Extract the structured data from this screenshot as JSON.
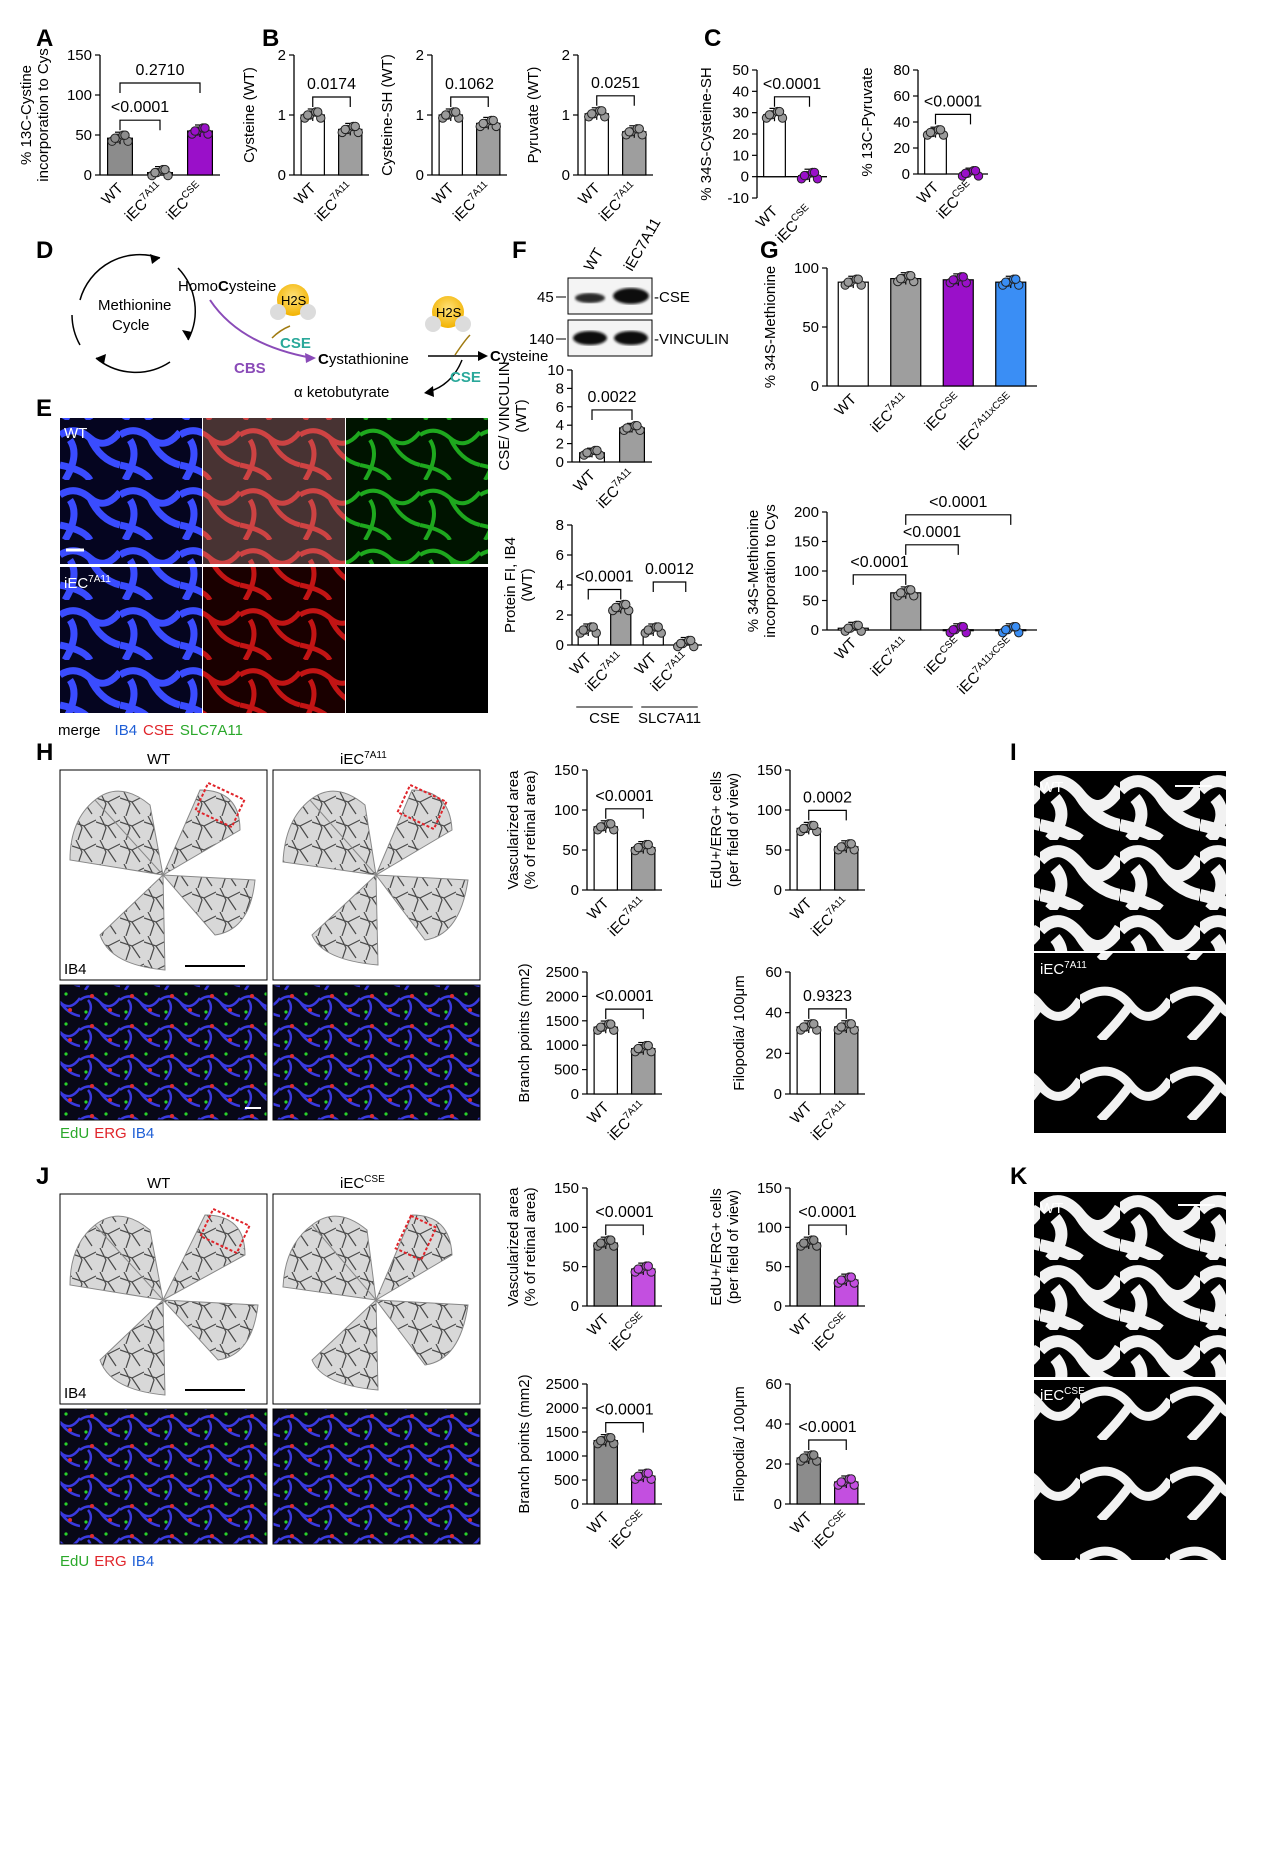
{
  "colors": {
    "wt": "#ffffff",
    "wt_grey": "#8c8c8c",
    "ec7a11": "#9e9e9e",
    "ecCSE": "#9a10c9",
    "ecCSE_light": "#c34fe0",
    "ec7a11xCSE": "#3a8ef5",
    "dark_dot": "#222222",
    "red_box": "#e0242a",
    "ib4": "#1f5fd6",
    "cse": "#e0242a",
    "slc": "#2aa82a",
    "cse_label": "#2aa89a",
    "cbs_label": "#8a4bb8"
  },
  "panels": {
    "A": "A",
    "B": "B",
    "C": "C",
    "D": "D",
    "E": "E",
    "F": "F",
    "G": "G",
    "H": "H",
    "I": "I",
    "J": "J",
    "K": "K"
  },
  "diagram_D": {
    "cycle": [
      "Methionine",
      "Cycle"
    ],
    "homocysteine_pre": "Homo",
    "homocysteine_bold": "C",
    "homocysteine_post": "ysteine",
    "h2s_1": "H2S",
    "h2s_2": "H2S",
    "cse_1": "CSE",
    "cse_2": "CSE",
    "cbs": "CBS",
    "cystathionine_bold": "C",
    "cystathionine_post": "ystathionine",
    "cysteine_bold": "C",
    "cysteine_post": "ysteine",
    "ketobutyrate": "α ketobutyrate"
  },
  "panel_E": {
    "wt": "WT",
    "mut_base": "iEC",
    "mut_sup": "7A11",
    "legend_merge": "merge",
    "legend_ib4": "IB4",
    "legend_cse": "CSE",
    "legend_slc": "SLC7A11"
  },
  "panel_F_blot": {
    "lanes": [
      "WT",
      "iEC7A11"
    ],
    "mw": [
      "45",
      "140"
    ],
    "bands": [
      "-CSE",
      "-VINCULIN"
    ]
  },
  "panel_H": {
    "wt": "WT",
    "mut_base": "iEC",
    "mut_sup": "7A11",
    "stain": "IB4",
    "legend_edu": "EdU",
    "legend_erg": "ERG",
    "legend_ib4": "IB4"
  },
  "panel_I": {
    "wt": "WT",
    "mut_base": "iEC",
    "mut_sup": "7A11"
  },
  "panel_J": {
    "wt": "WT",
    "mut_base": "iEC",
    "mut_sup": "CSE",
    "stain": "IB4",
    "legend_edu": "EdU",
    "legend_erg": "ERG",
    "legend_ib4": "IB4"
  },
  "panel_K": {
    "wt": "WT",
    "mut_base": "iEC",
    "mut_sup": "CSE"
  },
  "chart_data": [
    {
      "id": "A",
      "type": "bar",
      "ylabel": [
        "% 13C-Cystine",
        "incorporation to Cys"
      ],
      "ylim": [
        0,
        150
      ],
      "ticks": [
        0,
        50,
        100,
        150
      ],
      "categories": [
        [
          "WT",
          ""
        ],
        [
          "iEC",
          "7A11"
        ],
        [
          "iEC",
          "CSE"
        ]
      ],
      "values": [
        46,
        3,
        55
      ],
      "colors": [
        "wt_grey",
        "wt",
        "ecCSE"
      ],
      "pvalues": [
        {
          "a": 0,
          "b": 1,
          "text": "<0.0001"
        },
        {
          "a": 0,
          "b": 2,
          "text": "0.2710"
        }
      ]
    },
    {
      "id": "B1",
      "type": "bar",
      "ylabel": [
        "Cysteine (WT)"
      ],
      "ylim": [
        0,
        2
      ],
      "ticks": [
        0,
        1,
        2
      ],
      "categories": [
        [
          "WT",
          ""
        ],
        [
          "iEC",
          "7A11"
        ]
      ],
      "values": [
        1.0,
        0.76
      ],
      "colors": [
        "wt",
        "ec7a11"
      ],
      "pvalues": [
        {
          "a": 0,
          "b": 1,
          "text": "0.0174"
        }
      ]
    },
    {
      "id": "B2",
      "type": "bar",
      "ylabel": [
        "Cysteine-SH (WT)"
      ],
      "ylim": [
        0,
        2
      ],
      "ticks": [
        0,
        1,
        2
      ],
      "categories": [
        [
          "WT",
          ""
        ],
        [
          "iEC",
          "7A11"
        ]
      ],
      "values": [
        1.0,
        0.86
      ],
      "colors": [
        "wt",
        "ec7a11"
      ],
      "pvalues": [
        {
          "a": 0,
          "b": 1,
          "text": "0.1062"
        }
      ]
    },
    {
      "id": "B3",
      "type": "bar",
      "ylabel": [
        "Pyruvate (WT)"
      ],
      "ylim": [
        0,
        2
      ],
      "ticks": [
        0,
        1,
        2
      ],
      "categories": [
        [
          "WT",
          ""
        ],
        [
          "iEC",
          "7A11"
        ]
      ],
      "values": [
        1.02,
        0.72
      ],
      "colors": [
        "wt",
        "ec7a11"
      ],
      "pvalues": [
        {
          "a": 0,
          "b": 1,
          "text": "0.0251"
        }
      ]
    },
    {
      "id": "C1",
      "type": "bar",
      "ylabel": [
        "% 34S-Cysteine-SH"
      ],
      "ylim": [
        -10,
        50
      ],
      "ticks": [
        -10,
        0,
        10,
        20,
        30,
        40,
        50
      ],
      "categories": [
        [
          "WT",
          ""
        ],
        [
          "iEC",
          "CSE"
        ]
      ],
      "values": [
        29,
        0.5
      ],
      "colors": [
        "wt",
        "ecCSE"
      ],
      "pvalues": [
        {
          "a": 0,
          "b": 1,
          "text": "<0.0001"
        }
      ]
    },
    {
      "id": "C2",
      "type": "bar",
      "ylabel": [
        "% 13C-Pyruvate"
      ],
      "ylim": [
        0,
        80
      ],
      "ticks": [
        0,
        20,
        40,
        60,
        80
      ],
      "categories": [
        [
          "WT",
          ""
        ],
        [
          "iEC",
          "CSE"
        ]
      ],
      "values": [
        32,
        0.5
      ],
      "colors": [
        "wt",
        "ecCSE"
      ],
      "pvalues": [
        {
          "a": 0,
          "b": 1,
          "text": "<0.0001"
        }
      ]
    },
    {
      "id": "F1",
      "type": "bar",
      "ylabel": [
        "CSE/ VINCULIN",
        "(WT)"
      ],
      "ylim": [
        0,
        10
      ],
      "ticks": [
        0,
        2,
        4,
        6,
        8,
        10
      ],
      "categories": [
        [
          "WT",
          ""
        ],
        [
          "iEC",
          "7A11"
        ]
      ],
      "values": [
        1.0,
        3.7
      ],
      "colors": [
        "wt",
        "ec7a11"
      ],
      "pvalues": [
        {
          "a": 0,
          "b": 1,
          "text": "0.0022"
        }
      ]
    },
    {
      "id": "F2",
      "type": "bar",
      "ylabel": [
        "Protein FI, IB4",
        "(WT)"
      ],
      "ylim": [
        0,
        8
      ],
      "ticks": [
        0,
        2,
        4,
        6,
        8
      ],
      "categories": [
        [
          "WT",
          ""
        ],
        [
          "iEC",
          "7A11"
        ],
        [
          "WT",
          ""
        ],
        [
          "iEC",
          "7A11"
        ]
      ],
      "values": [
        1.0,
        2.5,
        1.0,
        0.1
      ],
      "colors": [
        "wt",
        "ec7a11",
        "wt",
        "ec7a11"
      ],
      "groups": [
        "CSE",
        "SLC7A11"
      ],
      "pvalues": [
        {
          "a": 0,
          "b": 1,
          "text": "<0.0001"
        },
        {
          "a": 2,
          "b": 3,
          "text": "0.0012"
        }
      ]
    },
    {
      "id": "G1",
      "type": "bar",
      "ylabel": [
        "% 34S-Methionine"
      ],
      "ylim": [
        0,
        100
      ],
      "ticks": [
        0,
        50,
        100
      ],
      "categories": [
        [
          "WT",
          ""
        ],
        [
          "iEC",
          "7A11"
        ],
        [
          "iEC",
          "CSE"
        ],
        [
          "iEC",
          "7A11xCSE"
        ]
      ],
      "values": [
        88,
        91,
        90,
        88
      ],
      "colors": [
        "wt",
        "ec7a11",
        "ecCSE",
        "ec7a11xCSE"
      ],
      "pvalues": []
    },
    {
      "id": "G2",
      "type": "bar",
      "ylabel": [
        "% 34S-Methionine",
        "incorporation to Cys"
      ],
      "ylim": [
        0,
        200
      ],
      "ticks": [
        0,
        50,
        100,
        150,
        200
      ],
      "categories": [
        [
          "WT",
          ""
        ],
        [
          "iEC",
          "7A11"
        ],
        [
          "iEC",
          "CSE"
        ],
        [
          "iEC",
          "7A11xCSE"
        ]
      ],
      "values": [
        3,
        63,
        0.5,
        0.5
      ],
      "colors": [
        "wt",
        "ec7a11",
        "ecCSE",
        "ec7a11xCSE"
      ],
      "pvalues": [
        {
          "a": 0,
          "b": 1,
          "text": "<0.0001"
        },
        {
          "a": 1,
          "b": 2,
          "text": "<0.0001"
        },
        {
          "a": 1,
          "b": 3,
          "text": "<0.0001"
        }
      ]
    },
    {
      "id": "H1",
      "type": "bar",
      "ylabel": [
        "Vascularized area",
        "(% of retinal area)"
      ],
      "ylim": [
        0,
        150
      ],
      "ticks": [
        0,
        50,
        100,
        150
      ],
      "categories": [
        [
          "WT",
          ""
        ],
        [
          "iEC",
          "7A11"
        ]
      ],
      "values": [
        79,
        53
      ],
      "colors": [
        "wt",
        "ec7a11"
      ],
      "pvalues": [
        {
          "a": 0,
          "b": 1,
          "text": "<0.0001"
        }
      ]
    },
    {
      "id": "H2",
      "type": "bar",
      "ylabel": [
        "EdU+/ERG+ cells",
        "(per field of view)"
      ],
      "ylim": [
        0,
        150
      ],
      "ticks": [
        0,
        50,
        100,
        150
      ],
      "categories": [
        [
          "WT",
          ""
        ],
        [
          "iEC",
          "7A11"
        ]
      ],
      "values": [
        77,
        54
      ],
      "colors": [
        "wt",
        "ec7a11"
      ],
      "pvalues": [
        {
          "a": 0,
          "b": 1,
          "text": "0.0002"
        }
      ]
    },
    {
      "id": "H3",
      "type": "bar",
      "ylabel": [
        "Branch points (mm2)"
      ],
      "ylim": [
        0,
        2500
      ],
      "ticks": [
        0,
        500,
        1000,
        1500,
        2000,
        2500
      ],
      "categories": [
        [
          "WT",
          ""
        ],
        [
          "iEC",
          "7A11"
        ]
      ],
      "values": [
        1370,
        930
      ],
      "colors": [
        "wt",
        "ec7a11"
      ],
      "pvalues": [
        {
          "a": 0,
          "b": 1,
          "text": "<0.0001"
        }
      ]
    },
    {
      "id": "H4",
      "type": "bar",
      "ylabel": [
        "Filopodia/ 100μm"
      ],
      "ylim": [
        0,
        60
      ],
      "ticks": [
        0,
        20,
        40,
        60
      ],
      "categories": [
        [
          "WT",
          ""
        ],
        [
          "iEC",
          "7A11"
        ]
      ],
      "values": [
        33,
        33
      ],
      "colors": [
        "wt",
        "ec7a11"
      ],
      "pvalues": [
        {
          "a": 0,
          "b": 1,
          "text": "0.9323"
        }
      ]
    },
    {
      "id": "J1",
      "type": "bar",
      "ylabel": [
        "Vascularized area",
        "(% of retinal area)"
      ],
      "ylim": [
        0,
        150
      ],
      "ticks": [
        0,
        50,
        100,
        150
      ],
      "categories": [
        [
          "WT",
          ""
        ],
        [
          "iEC",
          "CSE"
        ]
      ],
      "values": [
        80,
        47
      ],
      "colors": [
        "wt_grey",
        "ecCSE_light"
      ],
      "pvalues": [
        {
          "a": 0,
          "b": 1,
          "text": "<0.0001"
        }
      ]
    },
    {
      "id": "J2",
      "type": "bar",
      "ylabel": [
        "EdU+/ERG+ cells",
        "(per field of view)"
      ],
      "ylim": [
        0,
        150
      ],
      "ticks": [
        0,
        50,
        100,
        150
      ],
      "categories": [
        [
          "WT",
          ""
        ],
        [
          "iEC",
          "CSE"
        ]
      ],
      "values": [
        80,
        33
      ],
      "colors": [
        "wt_grey",
        "ecCSE_light"
      ],
      "pvalues": [
        {
          "a": 0,
          "b": 1,
          "text": "<0.0001"
        }
      ]
    },
    {
      "id": "J3",
      "type": "bar",
      "ylabel": [
        "Branch points (mm2)"
      ],
      "ylim": [
        0,
        2500
      ],
      "ticks": [
        0,
        500,
        1000,
        1500,
        2000,
        2500
      ],
      "categories": [
        [
          "WT",
          ""
        ],
        [
          "iEC",
          "CSE"
        ]
      ],
      "values": [
        1320,
        580
      ],
      "colors": [
        "wt_grey",
        "ecCSE_light"
      ],
      "pvalues": [
        {
          "a": 0,
          "b": 1,
          "text": "<0.0001"
        }
      ]
    },
    {
      "id": "J4",
      "type": "bar",
      "ylabel": [
        "Filopodia/ 100μm"
      ],
      "ylim": [
        0,
        60
      ],
      "ticks": [
        0,
        20,
        40,
        60
      ],
      "categories": [
        [
          "WT",
          ""
        ],
        [
          "iEC",
          "CSE"
        ]
      ],
      "values": [
        23,
        11
      ],
      "colors": [
        "wt_grey",
        "ecCSE_light"
      ],
      "pvalues": [
        {
          "a": 0,
          "b": 1,
          "text": "<0.0001"
        }
      ]
    }
  ]
}
